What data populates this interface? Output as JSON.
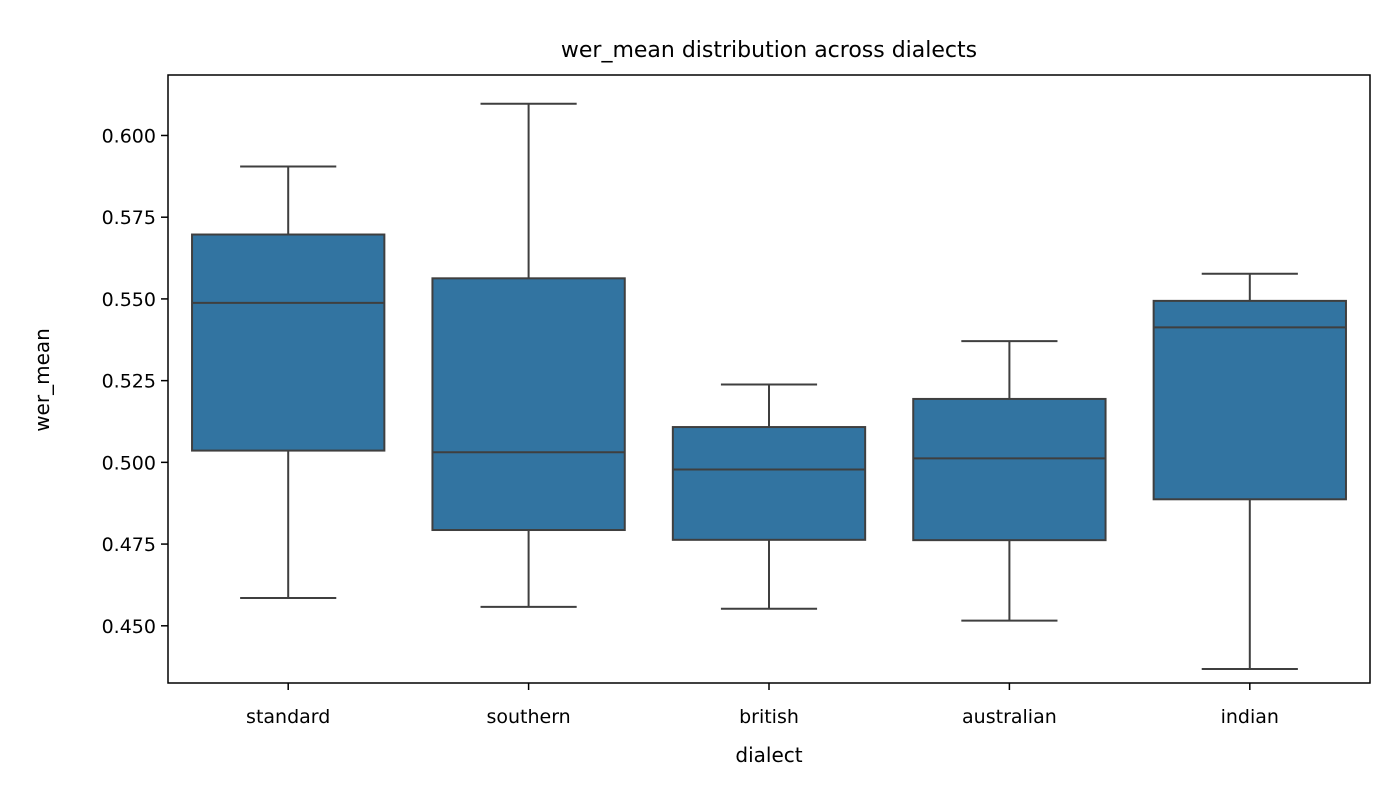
{
  "chart_data": {
    "type": "box",
    "title": "wer_mean distribution across dialects",
    "xlabel": "dialect",
    "ylabel": "wer_mean",
    "ylim": [
      0.4325,
      0.6185
    ],
    "yticks": [
      0.45,
      0.475,
      0.5,
      0.525,
      0.55,
      0.575,
      0.6
    ],
    "ytick_labels": [
      "0.450",
      "0.475",
      "0.500",
      "0.525",
      "0.550",
      "0.575",
      "0.600"
    ],
    "grid": false,
    "color": "#3274a1",
    "line_color": "#3f3f3f",
    "categories": [
      "standard",
      "southern",
      "british",
      "australian",
      "indian"
    ],
    "boxes": [
      {
        "whisker_low": 0.4585,
        "q1": 0.5036,
        "median": 0.5488,
        "q3": 0.5697,
        "whisker_high": 0.5905
      },
      {
        "whisker_low": 0.4558,
        "q1": 0.4793,
        "median": 0.5031,
        "q3": 0.5563,
        "whisker_high": 0.6097
      },
      {
        "whisker_low": 0.4552,
        "q1": 0.4763,
        "median": 0.4978,
        "q3": 0.5108,
        "whisker_high": 0.5238
      },
      {
        "whisker_low": 0.4516,
        "q1": 0.4762,
        "median": 0.5012,
        "q3": 0.5194,
        "whisker_high": 0.5371
      },
      {
        "whisker_low": 0.4368,
        "q1": 0.4887,
        "median": 0.5413,
        "q3": 0.5494,
        "whisker_high": 0.5577
      }
    ]
  }
}
